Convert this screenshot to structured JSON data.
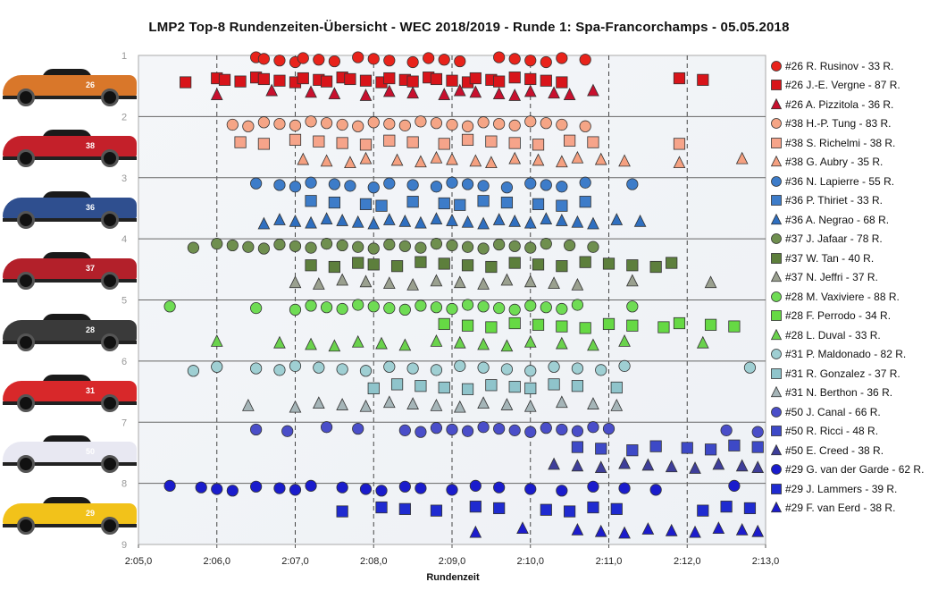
{
  "chart_data": {
    "type": "scatter",
    "title": "LMP2  Top-8  Rundenzeiten-Übersicht  - WEC 2018/2019  - Runde  1: Spa-Francorchamps  - 05.05.2018",
    "xlabel": "Rundenzeit",
    "ylabel": "",
    "x_unit": "seconds",
    "xlim": [
      125.0,
      133.0
    ],
    "ylim": [
      1,
      9
    ],
    "x_tick_labels": [
      "2:05,0",
      "2:06,0",
      "2:07,0",
      "2:08,0",
      "2:09,0",
      "2:10,0",
      "2:11,0",
      "2:12,0",
      "2:13,0"
    ],
    "y_tick_labels": [
      "1",
      "2",
      "3",
      "4",
      "5",
      "6",
      "7",
      "8",
      "9"
    ],
    "legend_position": "right",
    "grid": "x dashed, y solid",
    "series": [
      {
        "name": "#26 R. Rusinov - 33 R.",
        "marker": "circle",
        "color": "#e8231b",
        "y": 1.07,
        "x": [
          126.5,
          126.6,
          126.8,
          127.0,
          127.1,
          127.3,
          127.5,
          127.8,
          128.0,
          128.2,
          128.5,
          128.7,
          128.9,
          129.1,
          129.6,
          129.8,
          130.0,
          130.2,
          130.4,
          130.7
        ]
      },
      {
        "name": "#26 J.-E. Vergne - 87 R.",
        "marker": "square",
        "color": "#d8141a",
        "y": 1.4,
        "x": [
          125.6,
          126.0,
          126.1,
          126.3,
          126.5,
          126.6,
          126.8,
          127.0,
          127.1,
          127.3,
          127.4,
          127.6,
          127.7,
          127.9,
          128.1,
          128.2,
          128.4,
          128.5,
          128.7,
          128.8,
          129.0,
          129.2,
          129.3,
          129.5,
          129.6,
          129.8,
          130.0,
          130.2,
          130.4,
          131.9,
          132.2
        ]
      },
      {
        "name": "#26 A. Pizzitola - 36 R.",
        "marker": "triangle",
        "color": "#c8102e",
        "y": 1.62,
        "x": [
          126.0,
          126.7,
          127.2,
          127.5,
          127.9,
          128.2,
          128.5,
          128.9,
          129.1,
          129.3,
          129.6,
          129.8,
          130.0,
          130.3,
          130.5,
          130.8
        ]
      },
      {
        "name": "#38 H.-P. Tung - 83 R.",
        "marker": "circle",
        "color": "#f5a586",
        "y": 2.12,
        "x": [
          126.2,
          126.4,
          126.6,
          126.8,
          127.0,
          127.2,
          127.4,
          127.6,
          127.8,
          128.0,
          128.2,
          128.4,
          128.6,
          128.8,
          129.0,
          129.2,
          129.4,
          129.6,
          129.8,
          130.0,
          130.2,
          130.4,
          130.7
        ]
      },
      {
        "name": "#38 S. Richelmi - 38 R.",
        "marker": "square",
        "color": "#f6a48a",
        "y": 2.42,
        "x": [
          126.3,
          126.6,
          127.0,
          127.3,
          127.6,
          127.9,
          128.2,
          128.5,
          128.9,
          129.2,
          129.5,
          129.8,
          130.1,
          130.5,
          130.8,
          131.9
        ]
      },
      {
        "name": "#38 G. Aubry - 35 R.",
        "marker": "triangle",
        "color": "#f5a080",
        "y": 2.72,
        "x": [
          127.1,
          127.4,
          127.7,
          127.9,
          128.3,
          128.6,
          128.8,
          129.0,
          129.3,
          129.5,
          129.8,
          130.1,
          130.4,
          130.6,
          130.9,
          131.2,
          131.9,
          132.7
        ]
      },
      {
        "name": "#36 N. Lapierre - 55 R.",
        "marker": "circle",
        "color": "#3d7cc9",
        "y": 3.12,
        "x": [
          126.5,
          126.8,
          127.0,
          127.2,
          127.5,
          127.7,
          128.0,
          128.2,
          128.5,
          128.8,
          129.0,
          129.2,
          129.4,
          129.7,
          130.0,
          130.2,
          130.4,
          130.7,
          131.3
        ]
      },
      {
        "name": "#36 P. Thiriet - 33 R.",
        "marker": "square",
        "color": "#3d7cc9",
        "y": 3.42,
        "x": [
          127.2,
          127.5,
          127.9,
          128.1,
          128.5,
          128.9,
          129.1,
          129.4,
          129.7,
          130.1,
          130.4,
          130.7
        ]
      },
      {
        "name": "#36 A. Negrao - 68 R.",
        "marker": "triangle",
        "color": "#2f6fc0",
        "y": 3.72,
        "x": [
          126.6,
          126.8,
          127.0,
          127.2,
          127.4,
          127.6,
          127.8,
          128.0,
          128.2,
          128.4,
          128.6,
          128.8,
          129.0,
          129.2,
          129.4,
          129.6,
          129.8,
          130.0,
          130.2,
          130.4,
          130.6,
          130.8,
          131.1,
          131.4
        ]
      },
      {
        "name": "#37 J. Jafaar - 78 R.",
        "marker": "circle",
        "color": "#6f8f4f",
        "y": 4.12,
        "x": [
          125.7,
          126.0,
          126.2,
          126.4,
          126.6,
          126.8,
          127.0,
          127.2,
          127.4,
          127.6,
          127.8,
          128.0,
          128.2,
          128.4,
          128.6,
          128.8,
          129.0,
          129.2,
          129.4,
          129.6,
          129.8,
          130.0,
          130.2,
          130.5,
          130.8
        ]
      },
      {
        "name": "#37 W. Tan - 40 R.",
        "marker": "square",
        "color": "#5d7f3c",
        "y": 4.42,
        "x": [
          127.2,
          127.5,
          127.8,
          128.0,
          128.3,
          128.6,
          128.9,
          129.2,
          129.5,
          129.8,
          130.1,
          130.4,
          130.7,
          131.0,
          131.3,
          131.6,
          131.8
        ]
      },
      {
        "name": "#37 N. Jeffri - 37 R.",
        "marker": "triangle",
        "color": "#9aa08f",
        "y": 4.72,
        "x": [
          127.0,
          127.3,
          127.6,
          127.9,
          128.2,
          128.5,
          128.8,
          129.1,
          129.4,
          129.7,
          130.0,
          130.3,
          130.6,
          131.3,
          132.3
        ]
      },
      {
        "name": "#28 M. Vaxiviere - 88 R.",
        "marker": "circle",
        "color": "#6fdc54",
        "y": 5.12,
        "x": [
          125.4,
          126.5,
          127.0,
          127.2,
          127.4,
          127.6,
          127.8,
          128.0,
          128.2,
          128.4,
          128.6,
          128.8,
          129.0,
          129.2,
          129.4,
          129.6,
          129.8,
          130.0,
          130.2,
          130.4,
          130.6,
          131.3
        ]
      },
      {
        "name": "#28 F. Perrodo - 34 R.",
        "marker": "square",
        "color": "#66d944",
        "y": 5.42,
        "x": [
          128.9,
          129.2,
          129.5,
          129.8,
          130.1,
          130.4,
          130.7,
          131.0,
          131.3,
          131.7,
          131.9,
          132.3,
          132.6
        ]
      },
      {
        "name": "#28 L. Duval - 33 R.",
        "marker": "triangle",
        "color": "#6ad24c",
        "y": 5.72,
        "x": [
          126.0,
          126.8,
          127.2,
          127.5,
          127.8,
          128.1,
          128.4,
          128.8,
          129.1,
          129.4,
          129.7,
          130.0,
          130.4,
          130.8,
          131.2,
          132.2
        ]
      },
      {
        "name": "#31 P. Maldonado - 82 R.",
        "marker": "circle",
        "color": "#9fcfd3",
        "y": 6.12,
        "x": [
          125.7,
          126.0,
          126.5,
          126.8,
          127.0,
          127.3,
          127.6,
          127.9,
          128.2,
          128.5,
          128.8,
          129.1,
          129.4,
          129.7,
          130.0,
          130.3,
          130.6,
          130.9,
          131.2,
          132.8
        ]
      },
      {
        "name": "#31 R. Gonzalez - 37 R.",
        "marker": "square",
        "color": "#8fc4cb",
        "y": 6.42,
        "x": [
          128.0,
          128.3,
          128.6,
          128.9,
          129.2,
          129.5,
          129.8,
          130.0,
          130.3,
          130.6,
          131.1
        ]
      },
      {
        "name": "#31 N. Berthon - 36 R.",
        "marker": "triangle",
        "color": "#a5b5b8",
        "y": 6.72,
        "x": [
          126.4,
          127.0,
          127.3,
          127.6,
          127.9,
          128.2,
          128.5,
          128.8,
          129.1,
          129.4,
          129.7,
          130.0,
          130.4,
          130.8,
          131.1
        ]
      },
      {
        "name": "#50 J. Canal - 66 R.",
        "marker": "circle",
        "color": "#4a4ec9",
        "y": 7.12,
        "x": [
          126.5,
          126.9,
          127.4,
          127.8,
          128.4,
          128.6,
          128.8,
          129.0,
          129.2,
          129.4,
          129.6,
          129.8,
          130.0,
          130.2,
          130.4,
          130.6,
          130.8,
          131.0,
          132.5,
          132.9
        ]
      },
      {
        "name": "#50 R. Ricci - 48 R.",
        "marker": "square",
        "color": "#3d49c7",
        "y": 7.42,
        "x": [
          130.6,
          130.9,
          131.3,
          131.6,
          132.0,
          132.3,
          132.6,
          132.9
        ]
      },
      {
        "name": "#50 E. Creed - 38 R.",
        "marker": "triangle",
        "color": "#3e3e9a",
        "y": 7.72,
        "x": [
          130.3,
          130.6,
          130.9,
          131.2,
          131.5,
          131.8,
          132.1,
          132.4,
          132.7,
          132.9
        ]
      },
      {
        "name": "#29 G. van der Garde - 62 R.",
        "marker": "circle",
        "color": "#1a1ccc",
        "y": 8.08,
        "x": [
          125.4,
          125.8,
          126.0,
          126.2,
          126.5,
          126.8,
          127.0,
          127.2,
          127.6,
          127.9,
          128.1,
          128.4,
          128.6,
          129.0,
          129.3,
          129.6,
          130.0,
          130.4,
          130.8,
          131.2,
          131.6,
          132.6
        ]
      },
      {
        "name": "#29 J. Lammers - 39 R.",
        "marker": "square",
        "color": "#1f2bd0",
        "y": 8.42,
        "x": [
          127.6,
          128.1,
          128.4,
          128.8,
          129.3,
          129.6,
          130.2,
          130.5,
          130.8,
          131.1,
          132.2,
          132.5,
          132.8
        ]
      },
      {
        "name": "#29 F. van Eerd - 38 R.",
        "marker": "triangle",
        "color": "#1c1ccc",
        "y": 8.78,
        "x": [
          129.3,
          129.9,
          130.6,
          130.9,
          131.2,
          131.5,
          131.8,
          132.1,
          132.4,
          132.7,
          132.9
        ]
      }
    ],
    "cars": [
      {
        "number": "26",
        "color": "#d9772a"
      },
      {
        "number": "38",
        "color": "#c4202a"
      },
      {
        "number": "36",
        "color": "#2f4f8f"
      },
      {
        "number": "37",
        "color": "#b3202a"
      },
      {
        "number": "28",
        "color": "#3a3a3a"
      },
      {
        "number": "31",
        "color": "#d8282a"
      },
      {
        "number": "50",
        "color": "#e8e8f2"
      },
      {
        "number": "29",
        "color": "#f2c21a"
      }
    ]
  }
}
